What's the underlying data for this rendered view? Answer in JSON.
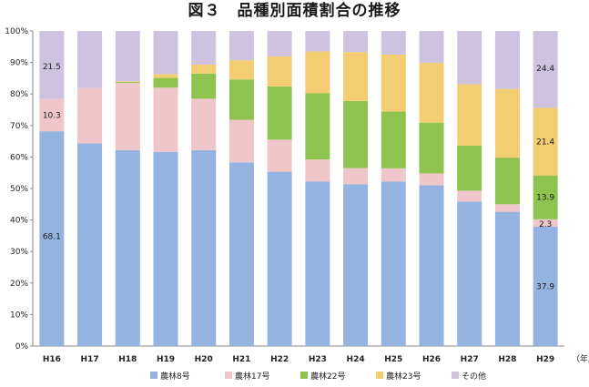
{
  "chart_data": {
    "type": "bar",
    "stacked": true,
    "percent": true,
    "title": "図３　品種別面積割合の推移",
    "xlabel": "",
    "ylabel": "",
    "x_unit": "（年産）",
    "ylim": [
      0,
      100
    ],
    "yticks": [
      "0%",
      "10%",
      "20%",
      "30%",
      "40%",
      "50%",
      "60%",
      "70%",
      "80%",
      "90%",
      "100%"
    ],
    "categories": [
      "H16",
      "H17",
      "H18",
      "H19",
      "H20",
      "H21",
      "H22",
      "H23",
      "H24",
      "H25",
      "H26",
      "H27",
      "H28",
      "H29"
    ],
    "series": [
      {
        "name": "農林8号",
        "color": "#95b3e0",
        "values": [
          68.1,
          64.3,
          62.2,
          61.6,
          62.2,
          58.3,
          55.3,
          52.2,
          51.3,
          52.2,
          51.0,
          45.8,
          42.6,
          37.9
        ]
      },
      {
        "name": "農林17号",
        "color": "#efc6ca",
        "values": [
          10.3,
          17.6,
          21.3,
          20.4,
          16.3,
          13.5,
          10.2,
          7.0,
          5.2,
          4.2,
          3.8,
          3.5,
          2.4,
          2.3
        ]
      },
      {
        "name": "農林22号",
        "color": "#8ec350",
        "values": [
          0.0,
          0.0,
          0.3,
          3.1,
          8.0,
          12.8,
          16.9,
          21.0,
          21.3,
          18.0,
          16.1,
          14.3,
          14.8,
          13.9
        ]
      },
      {
        "name": "農林23号",
        "color": "#f3cd72",
        "values": [
          0.0,
          0.0,
          0.2,
          1.2,
          2.8,
          6.1,
          9.5,
          13.3,
          15.5,
          18.1,
          19.0,
          19.5,
          21.8,
          21.4
        ]
      },
      {
        "name": "その他",
        "color": "#cdc3e1",
        "values": [
          21.5,
          18.1,
          16.0,
          13.7,
          10.7,
          9.3,
          8.1,
          6.5,
          6.7,
          7.5,
          10.1,
          16.9,
          18.4,
          24.4
        ]
      }
    ],
    "data_labels": [
      {
        "category": "H16",
        "series": "その他",
        "text": "21.5"
      },
      {
        "category": "H16",
        "series": "農林17号",
        "text": "10.3"
      },
      {
        "category": "H16",
        "series": "農林8号",
        "text": "68.1"
      },
      {
        "category": "H29",
        "series": "その他",
        "text": "24.4"
      },
      {
        "category": "H29",
        "series": "農林23号",
        "text": "21.4"
      },
      {
        "category": "H29",
        "series": "農林22号",
        "text": "13.9"
      },
      {
        "category": "H29",
        "series": "農林17号",
        "text": "2.3"
      },
      {
        "category": "H29",
        "series": "農林8号",
        "text": "37.9"
      }
    ],
    "grid": false,
    "legend_position": "bottom"
  }
}
